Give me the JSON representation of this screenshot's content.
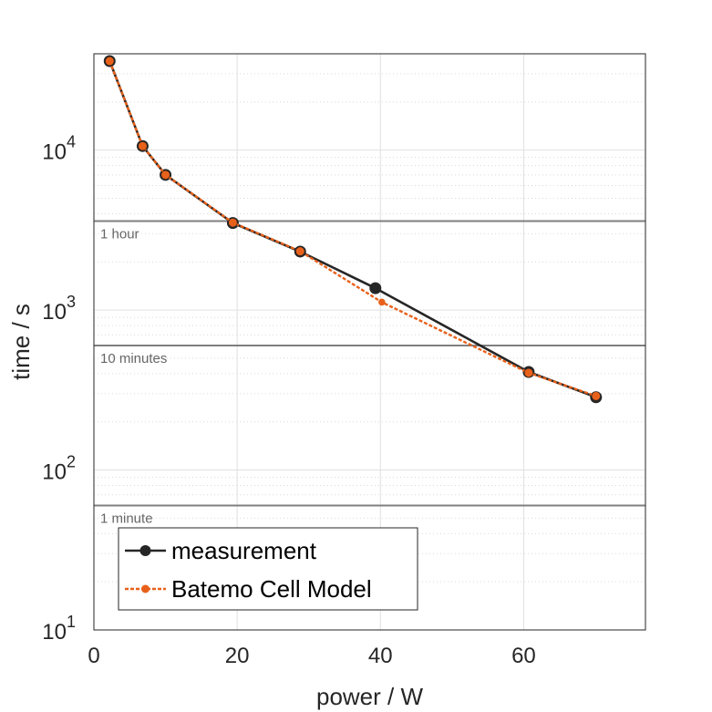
{
  "chart_data": {
    "type": "line",
    "title": "",
    "xlabel": "power / W",
    "ylabel": "time / s",
    "xlim": [
      0,
      77
    ],
    "ylim": [
      10,
      40000
    ],
    "yscale": "log",
    "grid": true,
    "x_ticks": [
      {
        "value": 0,
        "label": "0"
      },
      {
        "value": 20,
        "label": "20"
      },
      {
        "value": 40,
        "label": "40"
      },
      {
        "value": 60,
        "label": "60"
      }
    ],
    "y_ticks": [
      {
        "value": 10,
        "base": "10",
        "exp": "1"
      },
      {
        "value": 100,
        "base": "10",
        "exp": "2"
      },
      {
        "value": 1000,
        "base": "10",
        "exp": "3"
      },
      {
        "value": 10000,
        "base": "10",
        "exp": "4"
      }
    ],
    "reference_lines": [
      {
        "value": 3600,
        "label": "1 hour"
      },
      {
        "value": 600,
        "label": "10 minutes"
      },
      {
        "value": 60,
        "label": "1 minute"
      }
    ],
    "legend_position": "bottom-left",
    "series": [
      {
        "name": "measurement",
        "color": "#262626",
        "style": "solid",
        "marker": "large-circle",
        "points": [
          [
            2.2,
            36000
          ],
          [
            6.8,
            10600
          ],
          [
            10.0,
            7000
          ],
          [
            19.4,
            3500
          ],
          [
            28.8,
            2320
          ],
          [
            39.3,
            1370
          ],
          [
            60.7,
            410
          ],
          [
            70.1,
            285
          ]
        ]
      },
      {
        "name": "Batemo Cell Model",
        "color": "#e8611a",
        "style": "dashed",
        "marker": "small-circle",
        "points": [
          [
            2.2,
            36000
          ],
          [
            6.8,
            10600
          ],
          [
            10.0,
            7000
          ],
          [
            19.4,
            3520
          ],
          [
            28.8,
            2330
          ],
          [
            40.2,
            1120
          ],
          [
            60.7,
            405
          ],
          [
            70.1,
            290
          ]
        ]
      }
    ]
  }
}
